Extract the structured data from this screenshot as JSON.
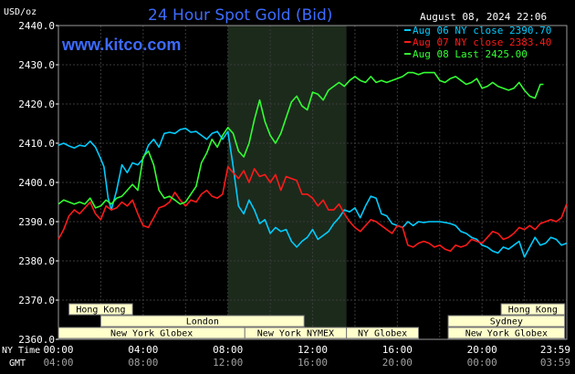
{
  "header": {
    "title": "24 Hour Spot Gold (Bid)",
    "datetime": "August 08, 2024 22:06",
    "brand": "www.kitco.com",
    "y_unit": "USD/oz"
  },
  "legend": [
    {
      "label": "Aug 06 NY close 2390.70",
      "color": "#00ccff"
    },
    {
      "label": "Aug 07 NY close 2383.40",
      "color": "#ff1a1a"
    },
    {
      "label": "Aug 08 Last 2425.00",
      "color": "#33ff33"
    }
  ],
  "axis": {
    "ny_label": "NY Time",
    "gmt_label": "GMT"
  },
  "sessions": [
    {
      "label": "Hong Kong",
      "row": 0,
      "start": 0.5,
      "end": 3.5
    },
    {
      "label": "Hong Kong",
      "row": 0,
      "start": 20.9,
      "end": 23.9
    },
    {
      "label": "London",
      "row": 1,
      "start": 2.0,
      "end": 11.6
    },
    {
      "label": "Sydney",
      "row": 1,
      "start": 18.4,
      "end": 23.9
    },
    {
      "label": "New York Globex",
      "row": 2,
      "start": 0.0,
      "end": 8.8
    },
    {
      "label": "New York NYMEX",
      "row": 2,
      "start": 8.8,
      "end": 13.6
    },
    {
      "label": "NY Globex",
      "row": 2,
      "start": 13.6,
      "end": 17.0
    },
    {
      "label": "New York Globex",
      "row": 2,
      "start": 18.4,
      "end": 23.9
    }
  ],
  "chart_data": {
    "type": "line",
    "title": "24 Hour Spot Gold (Bid)",
    "ylabel": "USD/oz",
    "ylim": [
      2360,
      2440
    ],
    "xlim": [
      0,
      24
    ],
    "yticks": [
      "2360.0",
      "2370.0",
      "2380.0",
      "2390.0",
      "2400.0",
      "2410.0",
      "2420.0",
      "2430.0",
      "2440.0"
    ],
    "yticks_values": [
      2360,
      2370,
      2380,
      2390,
      2400,
      2410,
      2420,
      2430,
      2440
    ],
    "xticks_values": [
      0,
      4,
      8,
      12,
      16,
      20,
      24
    ],
    "xticks_ny": [
      "00:00",
      "04:00",
      "08:00",
      "12:00",
      "16:00",
      "20:00",
      "23:59"
    ],
    "xticks_gmt": [
      "04:00",
      "08:00",
      "12:00",
      "16:00",
      "20:00",
      "00:00",
      "03:59"
    ],
    "shaded_region": [
      8.0,
      13.6
    ],
    "grid": true,
    "series": [
      {
        "name": "Aug 06 NY close 2390.70",
        "color": "#00ccff",
        "x": [
          0,
          0.25,
          0.5,
          0.75,
          1.0,
          1.25,
          1.5,
          1.75,
          2.0,
          2.15,
          2.35,
          2.5,
          2.75,
          3.0,
          3.25,
          3.5,
          3.75,
          4.0,
          4.25,
          4.5,
          4.75,
          5.0,
          5.25,
          5.5,
          5.75,
          6.0,
          6.25,
          6.5,
          6.75,
          7.0,
          7.25,
          7.5,
          7.75,
          8.0,
          8.25,
          8.5,
          8.75,
          9.0,
          9.25,
          9.5,
          9.75,
          10.0,
          10.25,
          10.5,
          10.75,
          11.0,
          11.25,
          11.5,
          11.75,
          12.0,
          12.25,
          12.5,
          12.75,
          13.0,
          13.25,
          13.5,
          13.75,
          14.0,
          14.25,
          14.5,
          14.75,
          15.0,
          15.25,
          15.5,
          15.75,
          16.0,
          16.25,
          16.5,
          16.75,
          17.0,
          17.25,
          17.5,
          17.75,
          18.0,
          18.25,
          18.5,
          18.75,
          19.0,
          19.25,
          19.5,
          19.75,
          20.0,
          20.25,
          20.5,
          20.75,
          21.0,
          21.25,
          21.5,
          21.75,
          22.0,
          22.25,
          22.5,
          22.75,
          23.0,
          23.25,
          23.5,
          23.75,
          23.99
        ],
        "values": [
          2409.5,
          2410.0,
          2409.3,
          2408.8,
          2409.5,
          2409.2,
          2410.5,
          2409.0,
          2406.0,
          2404.0,
          2396.0,
          2393.0,
          2398.0,
          2404.5,
          2402.5,
          2405.0,
          2404.5,
          2406.0,
          2409.5,
          2411.0,
          2409.0,
          2412.5,
          2412.8,
          2412.5,
          2413.5,
          2413.8,
          2412.8,
          2413.0,
          2412.0,
          2411.0,
          2412.5,
          2413.0,
          2411.0,
          2413.0,
          2404.0,
          2394.0,
          2392.0,
          2395.5,
          2393.0,
          2389.5,
          2390.5,
          2387.0,
          2388.5,
          2387.5,
          2388.0,
          2385.0,
          2383.5,
          2385.0,
          2386.0,
          2388.0,
          2385.5,
          2386.5,
          2387.5,
          2389.5,
          2391.0,
          2393.0,
          2392.5,
          2393.5,
          2391.0,
          2394.0,
          2396.5,
          2396.0,
          2392.0,
          2391.5,
          2389.5,
          2389.0,
          2388.5,
          2390.0,
          2389.0,
          2390.0,
          2389.8,
          2390.0,
          2390.0,
          2390.0,
          2389.8,
          2389.5,
          2389.0,
          2387.5,
          2387.0,
          2386.0,
          2385.5,
          2384.0,
          2383.5,
          2382.5,
          2382.0,
          2383.5,
          2383.0,
          2384.0,
          2385.0,
          2381.0,
          2383.5,
          2386.0,
          2384.0,
          2384.5,
          2386.0,
          2385.5,
          2384.0,
          2384.5
        ]
      },
      {
        "name": "Aug 07 NY close 2383.40",
        "color": "#ff1a1a",
        "x": [
          0,
          0.25,
          0.5,
          0.75,
          1.0,
          1.25,
          1.5,
          1.75,
          2.0,
          2.25,
          2.5,
          2.75,
          3.0,
          3.25,
          3.5,
          3.75,
          4.0,
          4.25,
          4.5,
          4.75,
          5.0,
          5.25,
          5.5,
          5.75,
          6.0,
          6.25,
          6.5,
          6.75,
          7.0,
          7.25,
          7.5,
          7.75,
          8.0,
          8.25,
          8.5,
          8.75,
          9.0,
          9.25,
          9.5,
          9.75,
          10.0,
          10.25,
          10.5,
          10.75,
          11.0,
          11.25,
          11.5,
          11.75,
          12.0,
          12.25,
          12.5,
          12.75,
          13.0,
          13.25,
          13.5,
          13.75,
          14.0,
          14.25,
          14.5,
          14.75,
          15.0,
          15.25,
          15.5,
          15.75,
          16.0,
          16.25,
          16.5,
          16.75,
          17.0,
          17.25,
          17.5,
          17.75,
          18.0,
          18.25,
          18.5,
          18.75,
          19.0,
          19.25,
          19.5,
          19.75,
          20.0,
          20.25,
          20.5,
          20.75,
          21.0,
          21.25,
          21.5,
          21.75,
          22.0,
          22.25,
          22.5,
          22.75,
          23.0,
          23.25,
          23.5,
          23.75,
          23.99
        ],
        "values": [
          2385.5,
          2388.0,
          2391.5,
          2393.0,
          2392.0,
          2393.5,
          2395.0,
          2392.0,
          2390.5,
          2394.0,
          2393.0,
          2393.5,
          2395.0,
          2394.0,
          2395.5,
          2392.0,
          2389.0,
          2388.5,
          2391.0,
          2393.5,
          2394.0,
          2395.0,
          2397.5,
          2395.5,
          2394.0,
          2395.5,
          2395.0,
          2397.0,
          2398.0,
          2396.5,
          2396.0,
          2397.0,
          2404.0,
          2402.5,
          2401.0,
          2403.0,
          2400.0,
          2403.5,
          2401.5,
          2402.0,
          2400.0,
          2402.0,
          2398.0,
          2401.5,
          2401.0,
          2400.5,
          2397.0,
          2397.0,
          2396.0,
          2394.0,
          2395.5,
          2393.0,
          2393.0,
          2394.5,
          2392.0,
          2390.0,
          2388.5,
          2387.5,
          2389.0,
          2390.5,
          2390.0,
          2389.0,
          2388.0,
          2387.0,
          2389.0,
          2388.5,
          2384.0,
          2383.5,
          2384.5,
          2385.0,
          2384.5,
          2383.5,
          2384.0,
          2383.0,
          2382.5,
          2384.0,
          2383.5,
          2384.0,
          2385.5,
          2385.0,
          2384.5,
          2386.0,
          2387.5,
          2387.0,
          2385.5,
          2386.0,
          2387.0,
          2388.5,
          2388.0,
          2389.0,
          2388.0,
          2389.5,
          2390.0,
          2390.5,
          2390.0,
          2391.0,
          2394.5
        ]
      },
      {
        "name": "Aug 08 Last 2425.00",
        "color": "#33ff33",
        "x": [
          0,
          0.25,
          0.5,
          0.75,
          1.0,
          1.25,
          1.5,
          1.75,
          2.0,
          2.25,
          2.5,
          2.75,
          3.0,
          3.25,
          3.5,
          3.75,
          4.0,
          4.25,
          4.5,
          4.75,
          5.0,
          5.25,
          5.5,
          5.75,
          6.0,
          6.25,
          6.5,
          6.75,
          7.0,
          7.25,
          7.5,
          7.75,
          8.0,
          8.25,
          8.5,
          8.75,
          9.0,
          9.25,
          9.5,
          9.75,
          10.0,
          10.25,
          10.5,
          10.75,
          11.0,
          11.25,
          11.5,
          11.75,
          12.0,
          12.25,
          12.5,
          12.75,
          13.0,
          13.25,
          13.5,
          13.75,
          14.0,
          14.25,
          14.5,
          14.75,
          15.0,
          15.25,
          15.5,
          15.75,
          16.0,
          16.25,
          16.5,
          16.75,
          17.0,
          17.25,
          17.5,
          17.75,
          18.0,
          18.25,
          18.5,
          18.75,
          19.0,
          19.25,
          19.5,
          19.75,
          20.0,
          20.25,
          20.5,
          20.75,
          21.0,
          21.25,
          21.5,
          21.75,
          22.0,
          22.25,
          22.5,
          22.75,
          22.9
        ],
        "values": [
          2394.5,
          2395.5,
          2395.0,
          2394.5,
          2395.0,
          2394.5,
          2396.0,
          2393.5,
          2394.0,
          2395.5,
          2394.5,
          2396.0,
          2396.5,
          2398.0,
          2399.5,
          2398.0,
          2406.5,
          2408.0,
          2404.5,
          2398.0,
          2396.0,
          2396.5,
          2395.5,
          2394.5,
          2395.0,
          2397.0,
          2399.0,
          2405.0,
          2407.5,
          2411.0,
          2409.0,
          2412.0,
          2414.0,
          2412.5,
          2408.0,
          2406.5,
          2410.0,
          2416.0,
          2421.0,
          2415.5,
          2412.0,
          2410.0,
          2412.5,
          2416.5,
          2420.5,
          2422.0,
          2419.5,
          2418.5,
          2423.0,
          2422.5,
          2421.0,
          2423.5,
          2424.5,
          2425.5,
          2424.5,
          2426.0,
          2427.0,
          2426.0,
          2425.5,
          2427.0,
          2425.5,
          2426.0,
          2425.5,
          2426.0,
          2426.5,
          2427.0,
          2428.0,
          2428.0,
          2427.5,
          2428.0,
          2428.0,
          2428.0,
          2426.0,
          2425.5,
          2426.5,
          2427.0,
          2426.0,
          2425.0,
          2425.5,
          2426.5,
          2424.0,
          2424.5,
          2425.5,
          2424.5,
          2424.0,
          2423.5,
          2424.0,
          2425.5,
          2423.5,
          2422.0,
          2421.5,
          2425.0,
          2425.0
        ]
      }
    ]
  }
}
